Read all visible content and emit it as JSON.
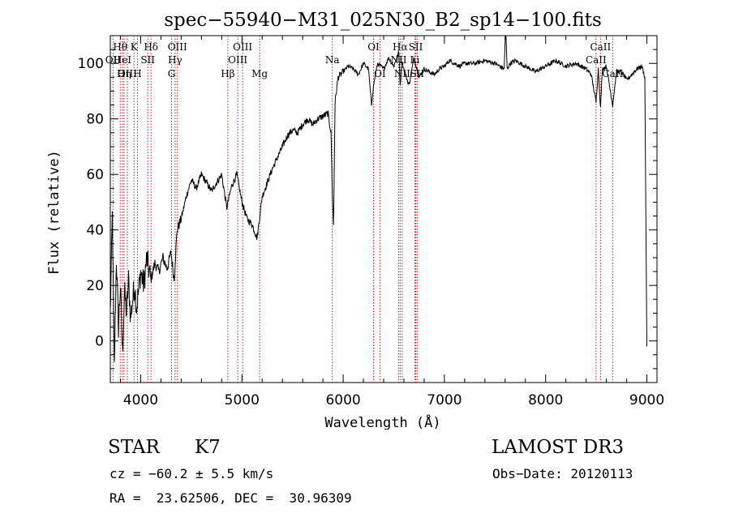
{
  "chart_data": {
    "type": "line",
    "title": "spec−55940−M31_025N30_B2_sp14−100.fits",
    "xlabel": "Wavelength (Å)",
    "ylabel": "Flux (relative)",
    "xlim": [
      3700,
      9100
    ],
    "ylim": [
      -15,
      110
    ],
    "xticks": [
      4000,
      5000,
      6000,
      7000,
      8000,
      9000
    ],
    "yticks": [
      0,
      20,
      40,
      60,
      80,
      100
    ],
    "grid": false,
    "series": [
      {
        "name": "spectrum",
        "x": [
          3700,
          3720,
          3740,
          3760,
          3780,
          3800,
          3820,
          3840,
          3860,
          3880,
          3900,
          3920,
          3940,
          3960,
          3980,
          4000,
          4030,
          4060,
          4100,
          4140,
          4180,
          4220,
          4260,
          4300,
          4330,
          4360,
          4400,
          4450,
          4500,
          4550,
          4600,
          4650,
          4700,
          4750,
          4800,
          4850,
          4900,
          4950,
          5000,
          5050,
          5100,
          5150,
          5200,
          5220,
          5250,
          5300,
          5350,
          5400,
          5450,
          5500,
          5550,
          5600,
          5650,
          5700,
          5750,
          5800,
          5850,
          5880,
          5895,
          5905,
          5920,
          5950,
          6000,
          6050,
          6100,
          6150,
          6200,
          6250,
          6280,
          6300,
          6320,
          6340,
          6400,
          6450,
          6500,
          6550,
          6563,
          6580,
          6600,
          6650,
          6700,
          6750,
          6800,
          6850,
          6900,
          6950,
          7000,
          7050,
          7100,
          7150,
          7200,
          7300,
          7400,
          7500,
          7590,
          7605,
          7620,
          7650,
          7700,
          7800,
          7900,
          8000,
          8100,
          8200,
          8300,
          8400,
          8450,
          8498,
          8520,
          8542,
          8560,
          8600,
          8662,
          8700,
          8750,
          8800,
          8850,
          8900,
          8950,
          8980,
          9000
        ],
        "values": [
          10,
          45,
          -10,
          30,
          5,
          20,
          -5,
          18,
          10,
          22,
          8,
          15,
          20,
          12,
          18,
          25,
          20,
          30,
          22,
          28,
          25,
          30,
          26,
          32,
          22,
          40,
          44,
          52,
          58,
          55,
          60,
          57,
          54,
          57,
          60,
          48,
          56,
          60,
          50,
          44,
          42,
          37,
          52,
          54,
          57,
          62,
          66,
          70,
          74,
          76,
          75,
          78,
          80,
          78,
          80,
          81,
          82,
          75,
          50,
          42,
          86,
          95,
          97,
          99,
          98,
          96,
          100,
          98,
          85,
          92,
          96,
          100,
          98,
          102,
          99,
          104,
          92,
          101,
          98,
          92,
          102,
          95,
          98,
          97,
          96,
          98,
          99,
          101,
          100,
          99,
          100,
          100,
          101,
          100,
          98,
          113,
          98,
          100,
          101,
          99,
          97,
          99,
          101,
          99,
          100,
          98,
          96,
          86,
          98,
          84,
          98,
          99,
          85,
          97,
          97,
          94,
          96,
          98,
          99,
          95,
          -2
        ]
      }
    ],
    "line_marks": [
      {
        "label": "Hθ",
        "x": 3798,
        "row": 1,
        "color": "#b22222"
      },
      {
        "label": "OII",
        "x": 3727,
        "row": 2,
        "color": "#b22222"
      },
      {
        "label": "HeI",
        "x": 3820,
        "row": 2,
        "color": "#b22222"
      },
      {
        "label": "OIII",
        "x": 3868,
        "row": 3,
        "color": "#b22222"
      },
      {
        "label": "Hη",
        "x": 3835,
        "row": 3,
        "color": "#b22222"
      },
      {
        "label": "K",
        "x": 3934,
        "row": 1,
        "color": "#b22222"
      },
      {
        "label": "H",
        "x": 3968,
        "row": 3,
        "color": "#b22222"
      },
      {
        "label": "SII",
        "x": 4070,
        "row": 2,
        "color": "#b22222"
      },
      {
        "label": "Hδ",
        "x": 4102,
        "row": 1,
        "color": "#b22222"
      },
      {
        "label": "OIII",
        "x": 4363,
        "row": 1,
        "color": "#b22222"
      },
      {
        "label": "Hγ",
        "x": 4340,
        "row": 2,
        "color": "#b22222"
      },
      {
        "label": "G",
        "x": 4305,
        "row": 3,
        "color": "#b22222"
      },
      {
        "label": "Hβ",
        "x": 4861,
        "row": 3,
        "color": "#b22222"
      },
      {
        "label": "OIII",
        "x": 5007,
        "row": 1,
        "color": "#b22222"
      },
      {
        "label": "OIII",
        "x": 4959,
        "row": 2,
        "color": "#b22222"
      },
      {
        "label": "Mg",
        "x": 5175,
        "row": 3,
        "color": "#b22222"
      },
      {
        "label": "Na",
        "x": 5893,
        "row": 2,
        "color": "#b22222"
      },
      {
        "label": "OI",
        "x": 6300,
        "row": 1,
        "color": "#b22222"
      },
      {
        "label": "OI",
        "x": 6363,
        "row": 3,
        "color": "#b22222"
      },
      {
        "label": "Hα",
        "x": 6563,
        "row": 1,
        "color": "#b22222"
      },
      {
        "label": "NII",
        "x": 6548,
        "row": 2,
        "color": "#b22222"
      },
      {
        "label": "NII",
        "x": 6583,
        "row": 3,
        "color": "#b22222"
      },
      {
        "label": "SII",
        "x": 6717,
        "row": 1,
        "color": "#b22222"
      },
      {
        "label": "Li",
        "x": 6708,
        "row": 2,
        "color": "#b22222"
      },
      {
        "label": "SII",
        "x": 6731,
        "row": 3,
        "color": "#b22222"
      },
      {
        "label": "CaII",
        "x": 8542,
        "row": 1,
        "color": "#b22222"
      },
      {
        "label": "CaII",
        "x": 8498,
        "row": 2,
        "color": "#b22222"
      },
      {
        "label": "CaII",
        "x": 8662,
        "row": 3,
        "color": "#b22222"
      }
    ]
  },
  "info": {
    "class": "STAR",
    "subclass": "K7",
    "survey": "LAMOST DR3",
    "redshift": "cz = −60.2 ± 5.5 km/s",
    "obs_date": "Obs−Date: 20120113",
    "coords": "RA =  23.62506, DEC =  30.96309"
  }
}
